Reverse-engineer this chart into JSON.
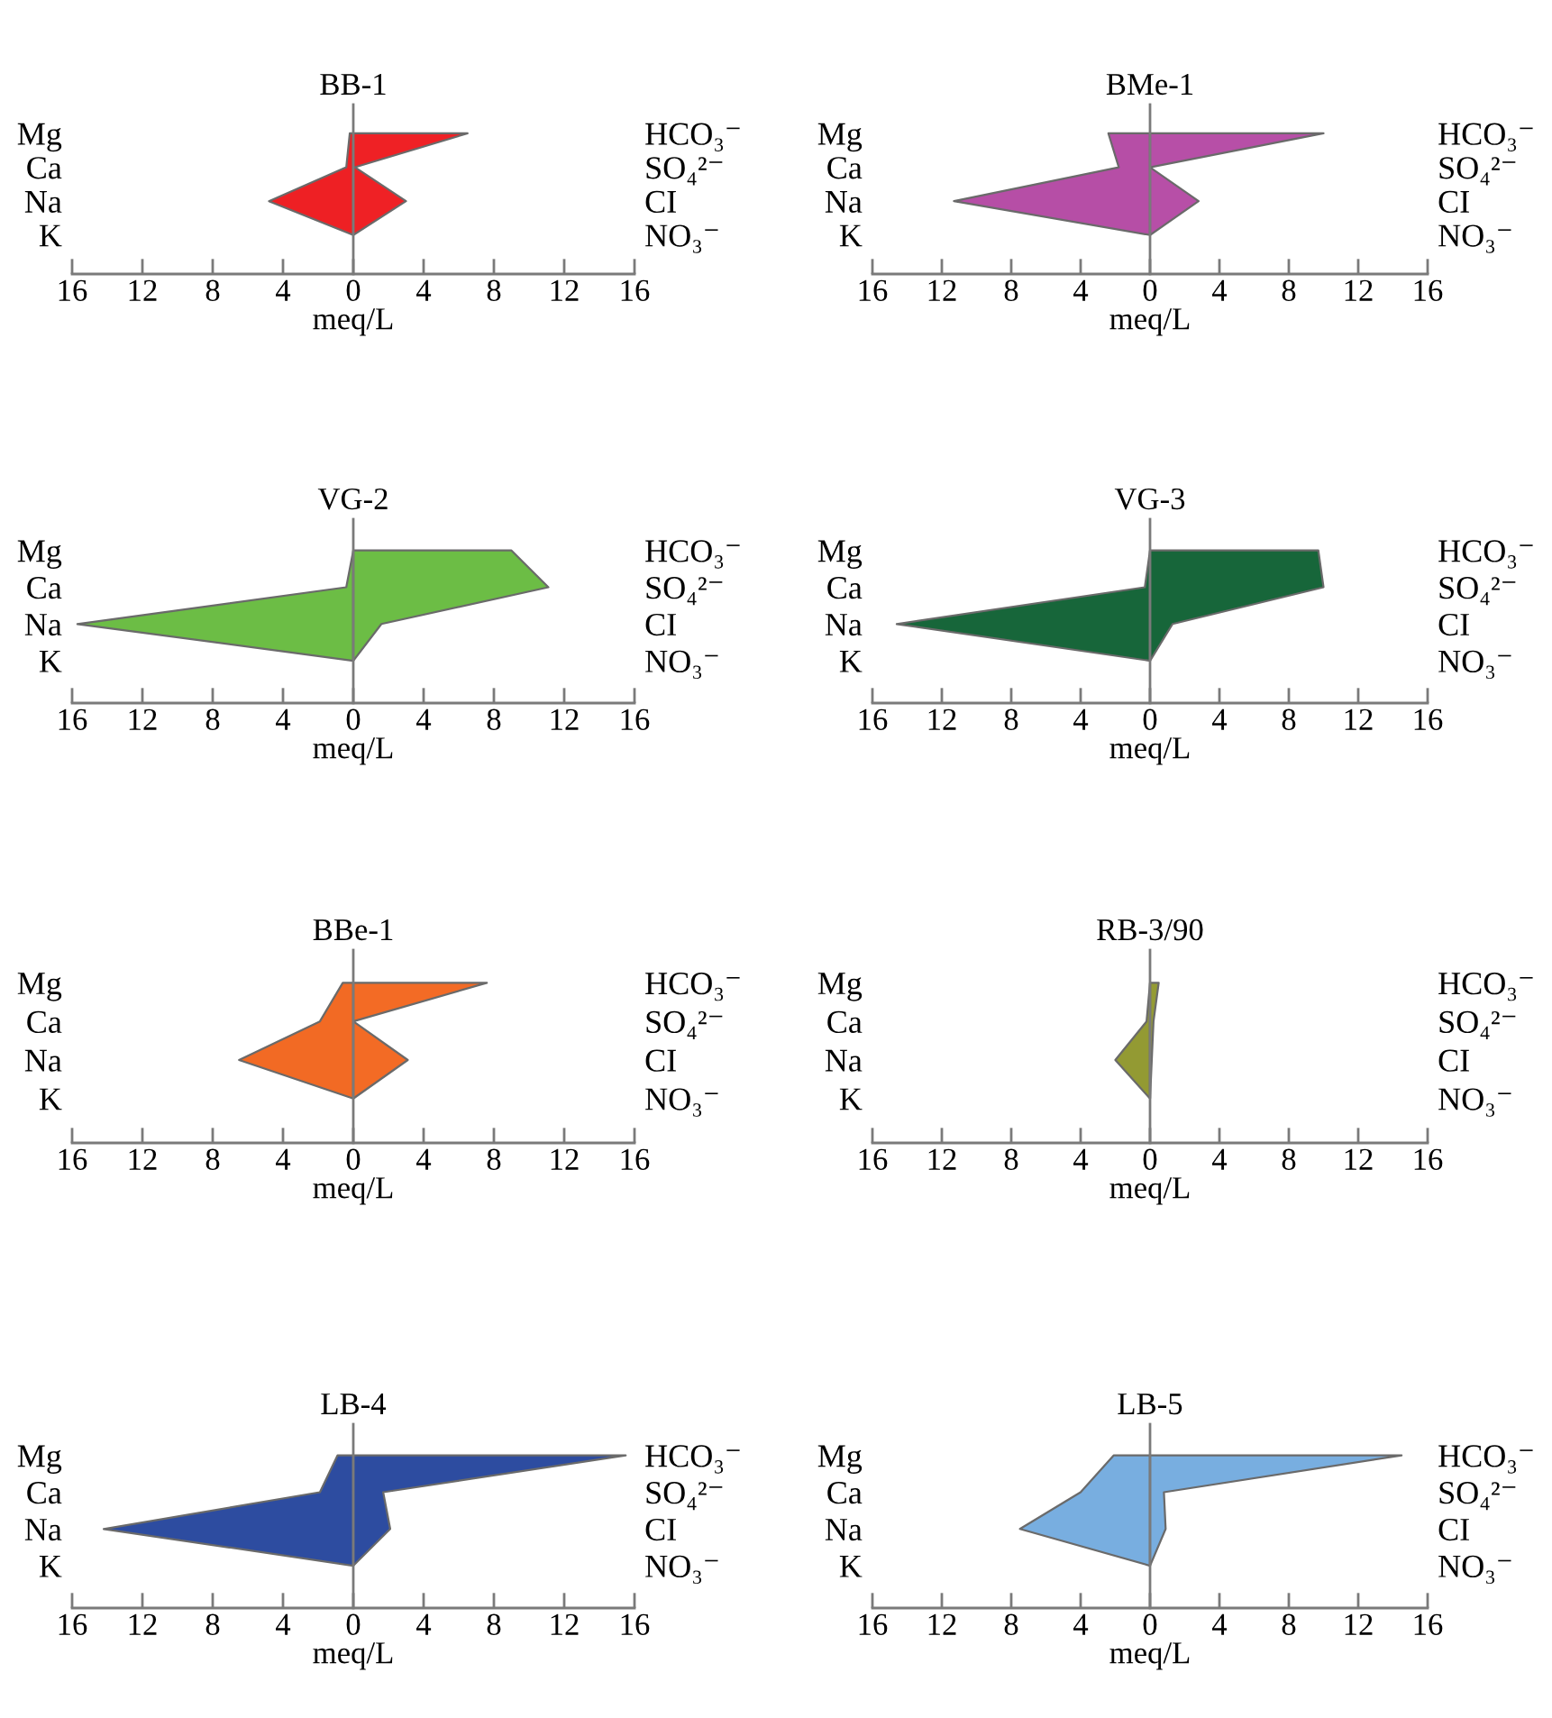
{
  "chart_data": [
    {
      "type": "area",
      "orientation": "horizontal",
      "title": "BB-1",
      "xlabel": "meq/L",
      "categories": [
        "Mg",
        "Ca",
        "Na",
        "K"
      ],
      "y2_categories": [
        "HCO₃⁻",
        "SO₄²⁻",
        "CI",
        "NO₃⁻"
      ],
      "series": [
        {
          "color": "#ee2024",
          "values": [
            -0.2,
            -0.4,
            -4.8,
            0
          ]
        },
        {
          "color": "#ef2125",
          "values": [
            6.5,
            0.1,
            3.0,
            0
          ]
        }
      ],
      "xlim": [
        -16,
        16
      ],
      "xticks": [
        {
          "value": -16,
          "label": "16"
        },
        {
          "value": -12,
          "label": "12"
        },
        {
          "value": -8,
          "label": "8"
        },
        {
          "value": -4,
          "label": "4"
        },
        0,
        4,
        8,
        12,
        16
      ]
    },
    {
      "type": "area",
      "orientation": "horizontal",
      "title": "BMe-1",
      "xlabel": "meq/L",
      "categories": [
        "Mg",
        "Ca",
        "Na",
        "K"
      ],
      "y2_categories": [
        "HCO₃⁻",
        "SO₄²⁻",
        "CI",
        "NO₃⁻"
      ],
      "series": [
        {
          "color": "#b64ea6",
          "values": [
            -2.4,
            -1.8,
            -11.3,
            0
          ]
        },
        {
          "color": "#b74fa7",
          "values": [
            10.0,
            0,
            2.8,
            0
          ]
        }
      ],
      "xlim": [
        -16,
        16
      ],
      "xticks": [
        {
          "value": -16,
          "label": "16"
        },
        {
          "value": -12,
          "label": "12"
        },
        {
          "value": -8,
          "label": "8"
        },
        {
          "value": -4,
          "label": "4"
        },
        0,
        4,
        8,
        12,
        16
      ]
    },
    {
      "type": "area",
      "orientation": "horizontal",
      "title": "VG-2",
      "xlabel": "meq/L",
      "categories": [
        "Mg",
        "Ca",
        "Na",
        "K"
      ],
      "y2_categories": [
        "HCO₃⁻",
        "SO₄²⁻",
        "CI",
        "NO₃⁻"
      ],
      "series": [
        {
          "color": "#6cbd45",
          "values": [
            0,
            -0.4,
            -15.7,
            0
          ]
        },
        {
          "color": "#6cbd45",
          "values": [
            9.0,
            11.1,
            1.6,
            0
          ]
        }
      ],
      "xlim": [
        -16,
        16
      ],
      "xticks": [
        {
          "value": -16,
          "label": "16"
        },
        {
          "value": -12,
          "label": "12"
        },
        {
          "value": -8,
          "label": "8"
        },
        {
          "value": -4,
          "label": "4"
        },
        0,
        4,
        8,
        12,
        16
      ]
    },
    {
      "type": "area",
      "orientation": "horizontal",
      "title": "VG-3",
      "xlabel": "meq/L",
      "categories": [
        "Mg",
        "Ca",
        "Na",
        "K"
      ],
      "y2_categories": [
        "HCO₃⁻",
        "SO₄²⁻",
        "CI",
        "NO₃⁻"
      ],
      "series": [
        {
          "color": "#17663a",
          "values": [
            0,
            -0.3,
            -14.6,
            0
          ]
        },
        {
          "color": "#17663a",
          "values": [
            9.7,
            10.0,
            1.3,
            0
          ]
        }
      ],
      "xlim": [
        -16,
        16
      ],
      "xticks": [
        {
          "value": -16,
          "label": "16"
        },
        {
          "value": -12,
          "label": "12"
        },
        {
          "value": -8,
          "label": "8"
        },
        {
          "value": -4,
          "label": "4"
        },
        0,
        4,
        8,
        12,
        16
      ]
    },
    {
      "type": "area",
      "orientation": "horizontal",
      "title": "BBe-1",
      "xlabel": "meq/L",
      "categories": [
        "Mg",
        "Ca",
        "Na",
        "K"
      ],
      "y2_categories": [
        "HCO₃⁻",
        "SO₄²⁻",
        "CI",
        "NO₃⁻"
      ],
      "series": [
        {
          "color": "#f26a24",
          "values": [
            -0.6,
            -1.9,
            -6.5,
            0
          ]
        },
        {
          "color": "#f36b25",
          "values": [
            7.6,
            0,
            3.1,
            0
          ]
        }
      ],
      "xlim": [
        -16,
        16
      ],
      "xticks": [
        {
          "value": -16,
          "label": "16"
        },
        {
          "value": -12,
          "label": "12"
        },
        {
          "value": -8,
          "label": "8"
        },
        {
          "value": -4,
          "label": "4"
        },
        0,
        4,
        8,
        12,
        16
      ]
    },
    {
      "type": "area",
      "orientation": "horizontal",
      "title": "RB-3/90",
      "xlabel": "meq/L",
      "categories": [
        "Mg",
        "Ca",
        "Na",
        "K"
      ],
      "y2_categories": [
        "HCO₃⁻",
        "SO₄²⁻",
        "CI",
        "NO₃⁻"
      ],
      "series": [
        {
          "color": "#939a33",
          "values": [
            0,
            -0.2,
            -2.0,
            0
          ]
        },
        {
          "color": "#949b34",
          "values": [
            0.5,
            0.2,
            0.1,
            0
          ]
        }
      ],
      "xlim": [
        -16,
        16
      ],
      "xticks": [
        {
          "value": -16,
          "label": "16"
        },
        {
          "value": -12,
          "label": "12"
        },
        {
          "value": -8,
          "label": "8"
        },
        {
          "value": -4,
          "label": "4"
        },
        0,
        4,
        8,
        12,
        16
      ]
    },
    {
      "type": "area",
      "orientation": "horizontal",
      "title": "LB-4",
      "xlabel": "meq/L",
      "categories": [
        "Mg",
        "Ca",
        "Na",
        "K"
      ],
      "y2_categories": [
        "HCO₃⁻",
        "SO₄²⁻",
        "CI",
        "NO₃⁻"
      ],
      "series": [
        {
          "color": "#2d4ca0",
          "values": [
            -0.9,
            -1.9,
            -14.2,
            0
          ]
        },
        {
          "color": "#2d4ca0",
          "values": [
            15.5,
            1.7,
            2.1,
            0
          ]
        }
      ],
      "xlim": [
        -16,
        16
      ],
      "xticks": [
        {
          "value": -16,
          "label": "16"
        },
        {
          "value": -12,
          "label": "12"
        },
        {
          "value": -8,
          "label": "8"
        },
        {
          "value": -4,
          "label": "4"
        },
        0,
        4,
        8,
        12,
        16
      ]
    },
    {
      "type": "area",
      "orientation": "horizontal",
      "title": "LB-5",
      "xlabel": "meq/L",
      "categories": [
        "Mg",
        "Ca",
        "Na",
        "K"
      ],
      "y2_categories": [
        "HCO₃⁻",
        "SO₄²⁻",
        "CI",
        "NO₃⁻"
      ],
      "series": [
        {
          "color": "#78aee0",
          "values": [
            -2.1,
            -4.0,
            -7.5,
            0
          ]
        },
        {
          "color": "#78aee0",
          "values": [
            14.5,
            0.8,
            0.9,
            0
          ]
        }
      ],
      "xlim": [
        -16,
        16
      ],
      "xticks": [
        {
          "value": -16,
          "label": "16"
        },
        {
          "value": -12,
          "label": "12"
        },
        {
          "value": -8,
          "label": "8"
        },
        {
          "value": -4,
          "label": "4"
        },
        0,
        4,
        8,
        12,
        16
      ]
    }
  ]
}
